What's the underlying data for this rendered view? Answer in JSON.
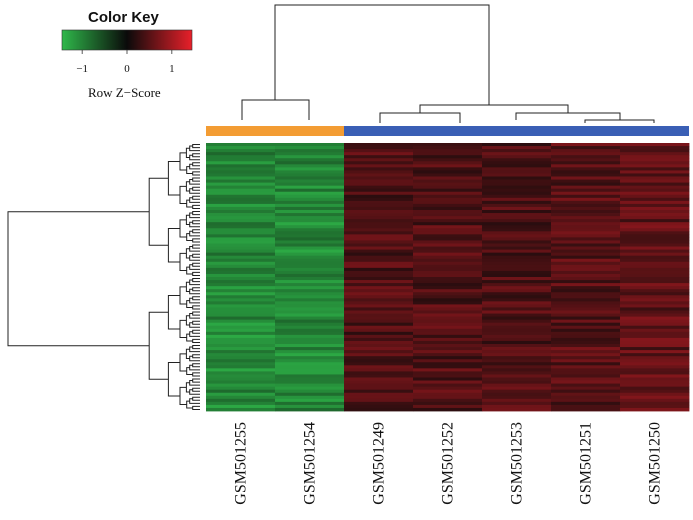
{
  "chart_data": {
    "type": "heatmap",
    "title": "",
    "color_key": {
      "title": "Color Key",
      "label": "Row Z−Score",
      "ticks": [
        "−1",
        "0",
        "1"
      ],
      "tick_values": [
        -1,
        0,
        1
      ],
      "range": [
        -1.45,
        1.45
      ],
      "colors": [
        "#2fb84a",
        "#0a0a0a",
        "#e8202a"
      ]
    },
    "columns": [
      "GSM501255",
      "GSM501254",
      "GSM501249",
      "GSM501252",
      "GSM501253",
      "GSM501251",
      "GSM501250"
    ],
    "column_groups": [
      {
        "columns": [
          "GSM501255",
          "GSM501254"
        ],
        "color": "#f39c33"
      },
      {
        "columns": [
          "GSM501249",
          "GSM501252",
          "GSM501253",
          "GSM501251",
          "GSM501250"
        ],
        "color": "#3a5fb5"
      }
    ],
    "column_mean_z": [
      -1.05,
      -1.05,
      0.45,
      0.45,
      0.45,
      0.5,
      0.55
    ],
    "row_count": 88,
    "grid": false,
    "legend_position": "top-left"
  }
}
